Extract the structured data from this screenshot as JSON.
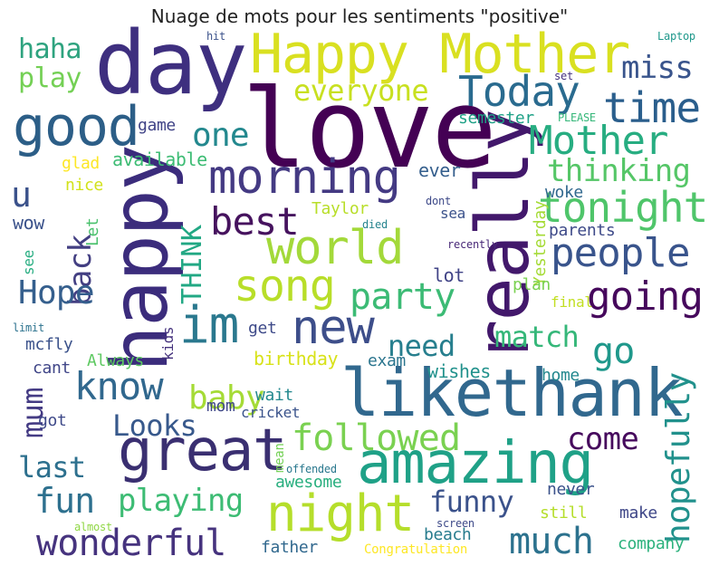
{
  "title": "Nuage de mots pour les sentiments \"positive\"",
  "words": [
    {
      "text": "love",
      "color": "#440154"
    },
    {
      "text": "day",
      "color": "#3e2f7f"
    },
    {
      "text": "Happy Mother",
      "color": "#d9e021"
    },
    {
      "text": "happy",
      "color": "#3b2c7c"
    },
    {
      "text": "really",
      "color": "#42186b"
    },
    {
      "text": "likethank",
      "color": "#31688e"
    },
    {
      "text": "amazing",
      "color": "#1fa187"
    },
    {
      "text": "great",
      "color": "#3a2f71"
    },
    {
      "text": "night",
      "color": "#b5de2b"
    },
    {
      "text": "good",
      "color": "#2c5e87"
    },
    {
      "text": "morning",
      "color": "#443a83"
    },
    {
      "text": "world",
      "color": "#a3d93a"
    },
    {
      "text": "im",
      "color": "#2a788e"
    },
    {
      "text": "new",
      "color": "#3d4e8a"
    },
    {
      "text": "Today",
      "color": "#2a6b8f"
    },
    {
      "text": "time",
      "color": "#2a5e8c"
    },
    {
      "text": "Mother",
      "color": "#27ad81"
    },
    {
      "text": "tonight",
      "color": "#4fc56a"
    },
    {
      "text": "people",
      "color": "#39548c"
    },
    {
      "text": "going",
      "color": "#46085c"
    },
    {
      "text": "song",
      "color": "#b8de29"
    },
    {
      "text": "party",
      "color": "#3cbb75"
    },
    {
      "text": "best",
      "color": "#46135e"
    },
    {
      "text": "back",
      "color": "#433f82"
    },
    {
      "text": "Hope",
      "color": "#355f8d"
    },
    {
      "text": "everyone",
      "color": "#c8e020"
    },
    {
      "text": "one",
      "color": "#23888e"
    },
    {
      "text": "miss",
      "color": "#39548c"
    },
    {
      "text": "thinking",
      "color": "#55c667"
    },
    {
      "text": "THINK",
      "color": "#22a884"
    },
    {
      "text": "hopefully",
      "color": "#21918c"
    },
    {
      "text": "followed",
      "color": "#7ad151"
    },
    {
      "text": "know",
      "color": "#31688e"
    },
    {
      "text": "baby",
      "color": "#a5db36"
    },
    {
      "text": "match",
      "color": "#35b779"
    },
    {
      "text": "need",
      "color": "#277f8e"
    },
    {
      "text": "go",
      "color": "#1f988b"
    },
    {
      "text": "Looks",
      "color": "#38598c"
    },
    {
      "text": "come",
      "color": "#460a5d"
    },
    {
      "text": "fun",
      "color": "#2d708e"
    },
    {
      "text": "playing",
      "color": "#3dbc74"
    },
    {
      "text": "funny",
      "color": "#3b528b"
    },
    {
      "text": "wonderful",
      "color": "#46337e"
    },
    {
      "text": "much",
      "color": "#2c728e"
    },
    {
      "text": "last",
      "color": "#2d708e"
    },
    {
      "text": "mum",
      "color": "#443b84"
    },
    {
      "text": "u",
      "color": "#3b528b"
    },
    {
      "text": "haha",
      "color": "#2ea37f"
    },
    {
      "text": "play",
      "color": "#74d055"
    },
    {
      "text": "game",
      "color": "#414487"
    },
    {
      "text": "glad",
      "color": "#fde725"
    },
    {
      "text": "available",
      "color": "#3dbc74"
    },
    {
      "text": "nice",
      "color": "#d2e21b"
    },
    {
      "text": "wow",
      "color": "#3b528b"
    },
    {
      "text": "Let",
      "color": "#4ac16d"
    },
    {
      "text": "see",
      "color": "#27ad81"
    },
    {
      "text": "Taylor",
      "color": "#b8de29"
    },
    {
      "text": "ever",
      "color": "#355f8d"
    },
    {
      "text": "semester",
      "color": "#1fa187"
    },
    {
      "text": "woke",
      "color": "#31688e"
    },
    {
      "text": "sea",
      "color": "#3b528b"
    },
    {
      "text": "parents",
      "color": "#3e4a89"
    },
    {
      "text": "Yesterday",
      "color": "#a5db36"
    },
    {
      "text": "lot",
      "color": "#414487"
    },
    {
      "text": "plan",
      "color": "#7ad151"
    },
    {
      "text": "final",
      "color": "#c2df23"
    },
    {
      "text": "birthday",
      "color": "#d8e219"
    },
    {
      "text": "exam",
      "color": "#2b758e"
    },
    {
      "text": "wishes",
      "color": "#21918c"
    },
    {
      "text": "home",
      "color": "#23888e"
    },
    {
      "text": "get",
      "color": "#3e4a89"
    },
    {
      "text": "kids",
      "color": "#46337e"
    },
    {
      "text": "Always",
      "color": "#5ec962"
    },
    {
      "text": "mcfly",
      "color": "#3b528b"
    },
    {
      "text": "cant",
      "color": "#404688"
    },
    {
      "text": "got",
      "color": "#3e4989"
    },
    {
      "text": "wait",
      "color": "#23888e"
    },
    {
      "text": "mom",
      "color": "#3f4788"
    },
    {
      "text": "cricket",
      "color": "#3a538b"
    },
    {
      "text": "mean",
      "color": "#73d055"
    },
    {
      "text": "awesome",
      "color": "#29af7f"
    },
    {
      "text": "offended",
      "color": "#2a788e"
    },
    {
      "text": "never",
      "color": "#3b528b"
    },
    {
      "text": "make",
      "color": "#3f4788"
    },
    {
      "text": "still",
      "color": "#b5de2b"
    },
    {
      "text": "screen",
      "color": "#3e4a89"
    },
    {
      "text": "beach",
      "color": "#287c8e"
    },
    {
      "text": "father",
      "color": "#31688e"
    },
    {
      "text": "company",
      "color": "#2db27d"
    },
    {
      "text": "almost",
      "color": "#8fd744"
    },
    {
      "text": "Congratulation",
      "color": "#fde725"
    },
    {
      "text": "hit",
      "color": "#3b528b"
    },
    {
      "text": "Laptop",
      "color": "#1f988b"
    },
    {
      "text": "set",
      "color": "#46337e"
    },
    {
      "text": "PLEASE",
      "color": "#35b779"
    },
    {
      "text": "dont",
      "color": "#3e4a89"
    },
    {
      "text": "died",
      "color": "#25848e"
    },
    {
      "text": "recently",
      "color": "#482878"
    },
    {
      "text": "limit",
      "color": "#2c728e"
    }
  ]
}
